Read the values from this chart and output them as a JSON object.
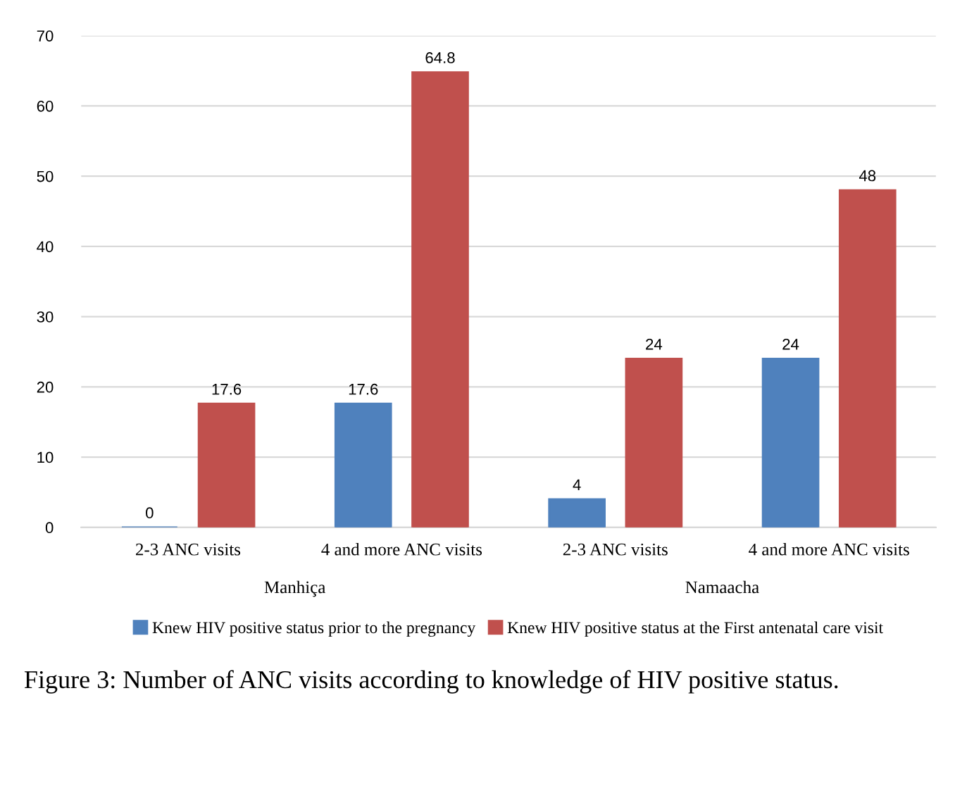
{
  "chart_data": {
    "type": "bar",
    "categories": [
      "2-3 ANC visits",
      "4 and more ANC visits",
      "2-3 ANC visits",
      "4 and more ANC visits"
    ],
    "series": [
      {
        "name": "Knew HIV positive status prior to the pregnancy",
        "color": "#4f81bd",
        "values": [
          0,
          17.6,
          4,
          24
        ]
      },
      {
        "name": "Knew HIV positive status at the First antenatal care visit",
        "color": "#c0504d",
        "values": [
          17.6,
          64.8,
          24,
          48
        ]
      }
    ],
    "ylim": [
      0,
      70
    ],
    "yticks": [
      0,
      10,
      20,
      30,
      40,
      50,
      60,
      70
    ],
    "grid": "y",
    "legend": "bottom",
    "data_labels": true,
    "annotations": [
      "Manhiça",
      "Namaacha",
      "Figure 3: Number of ANC visits according to knowledge of HIV positive status."
    ]
  }
}
